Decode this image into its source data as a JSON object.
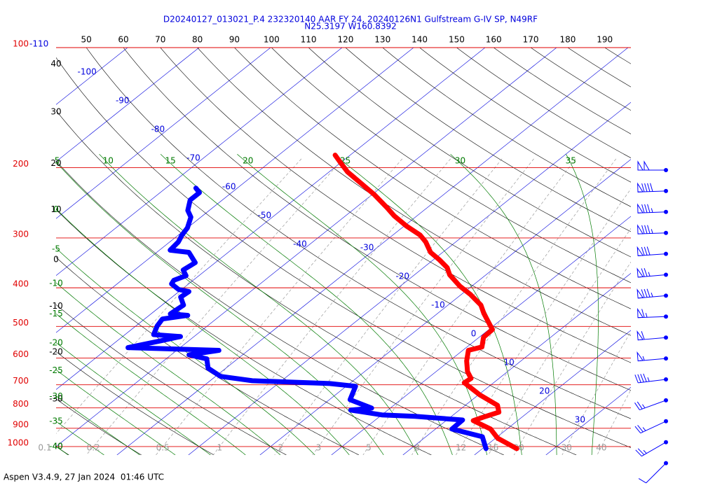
{
  "chart_data": {
    "type": "skewt",
    "title": "D20240127_013021_P.4 232320140 AAR FY 24, 20240126N1 Gulfstream G-IV SP, N49RF",
    "subtitle": "N25.3197 W160.8392",
    "footer": "Aspen V3.4.9, 27 Jan 2024  01:46 UTC",
    "ylog": true,
    "ylim": [
      1050,
      100
    ],
    "yticks": [
      100,
      200,
      300,
      400,
      500,
      600,
      700,
      800,
      900,
      1000
    ],
    "xlim": [
      -40,
      40.4
    ],
    "top_left_temperature": -110,
    "isotherms": [
      -100,
      -90,
      -80,
      -70,
      -60,
      -50,
      -40,
      -30,
      -20,
      -10,
      0,
      10,
      20,
      30
    ],
    "dry_adiabats": [
      -40,
      -30,
      -20,
      -10,
      0,
      10,
      20,
      30,
      40,
      50,
      60,
      70,
      80,
      90,
      100,
      110,
      120,
      130,
      140,
      150,
      160,
      170,
      180,
      190
    ],
    "moist_adiabats": [
      -40,
      -35,
      -30,
      -25,
      -20,
      -15,
      -10,
      -5,
      0,
      5,
      10,
      15,
      20,
      25,
      30,
      35
    ],
    "mixing_ratios": [
      0.1,
      0.2,
      0.5,
      1,
      2,
      3,
      5,
      8,
      12,
      16,
      20,
      30,
      40
    ],
    "colors": {
      "pressure": "#e00000",
      "isotherm": "#0000dd",
      "dry": "#000000",
      "moist": "#007a00",
      "mixing": "#9a9a9a"
    },
    "series": [
      {
        "color": "#ff0000",
        "pressure": [
          186,
          194,
          205,
          219,
          234,
          252,
          264,
          280,
          295,
          307,
          326,
          340,
          356,
          371,
          396,
          416,
          442,
          464,
          509,
          532,
          563,
          574,
          610,
          649,
          675,
          692,
          742,
          788,
          820,
          844,
          861,
          904,
          953,
          1012
        ],
        "temperature": [
          -52.1,
          -50.1,
          -47.4,
          -43.5,
          -39.6,
          -35.6,
          -33.2,
          -29.7,
          -26.2,
          -24.2,
          -21.7,
          -19.2,
          -16.7,
          -15.1,
          -11.7,
          -8.7,
          -5.4,
          -3.5,
          0.5,
          0.6,
          2.1,
          0.8,
          2.4,
          4.4,
          6.1,
          5.9,
          10.2,
          14.5,
          15.9,
          14.6,
          13.8,
          17.7,
          20.3,
          24.8
        ]
      },
      {
        "color": "#0000ff",
        "pressure": [
          225,
          231,
          241,
          256,
          266,
          283,
          295,
          307,
          322,
          326,
          346,
          361,
          373,
          383,
          391,
          404,
          409,
          422,
          442,
          465,
          469,
          479,
          499,
          524,
          530,
          543,
          565,
          574,
          589,
          603,
          636,
          667,
          684,
          695,
          706,
          763,
          801,
          810,
          833,
          840,
          858,
          904,
          945,
          1012
        ],
        "temperature": [
          -65.8,
          -64.5,
          -64.5,
          -63.0,
          -61.4,
          -60.0,
          -59.5,
          -58.8,
          -58.5,
          -55.5,
          -52.8,
          -53.2,
          -51.8,
          -52.7,
          -52.4,
          -50.4,
          -48.6,
          -48.8,
          -47.0,
          -47.3,
          -44.6,
          -47.5,
          -47.0,
          -46.0,
          -41.9,
          -43.9,
          -47.3,
          -34.1,
          -37.5,
          -34.3,
          -32.5,
          -29.3,
          -24.1,
          -12.8,
          -8.7,
          -7.1,
          -2.6,
          -5.2,
          0.0,
          4.9,
          12.2,
          12.3,
          17.9,
          20.5
        ]
      }
    ],
    "wind": {
      "color": "#0000ff",
      "speed": [
        100,
        90,
        85,
        85,
        80,
        75,
        85,
        65,
        60,
        55,
        45,
        25,
        25,
        25,
        10
      ],
      "direction": [
        270,
        268,
        268,
        268,
        266,
        265,
        265,
        268,
        265,
        265,
        263,
        250,
        245,
        240,
        225
      ]
    }
  }
}
